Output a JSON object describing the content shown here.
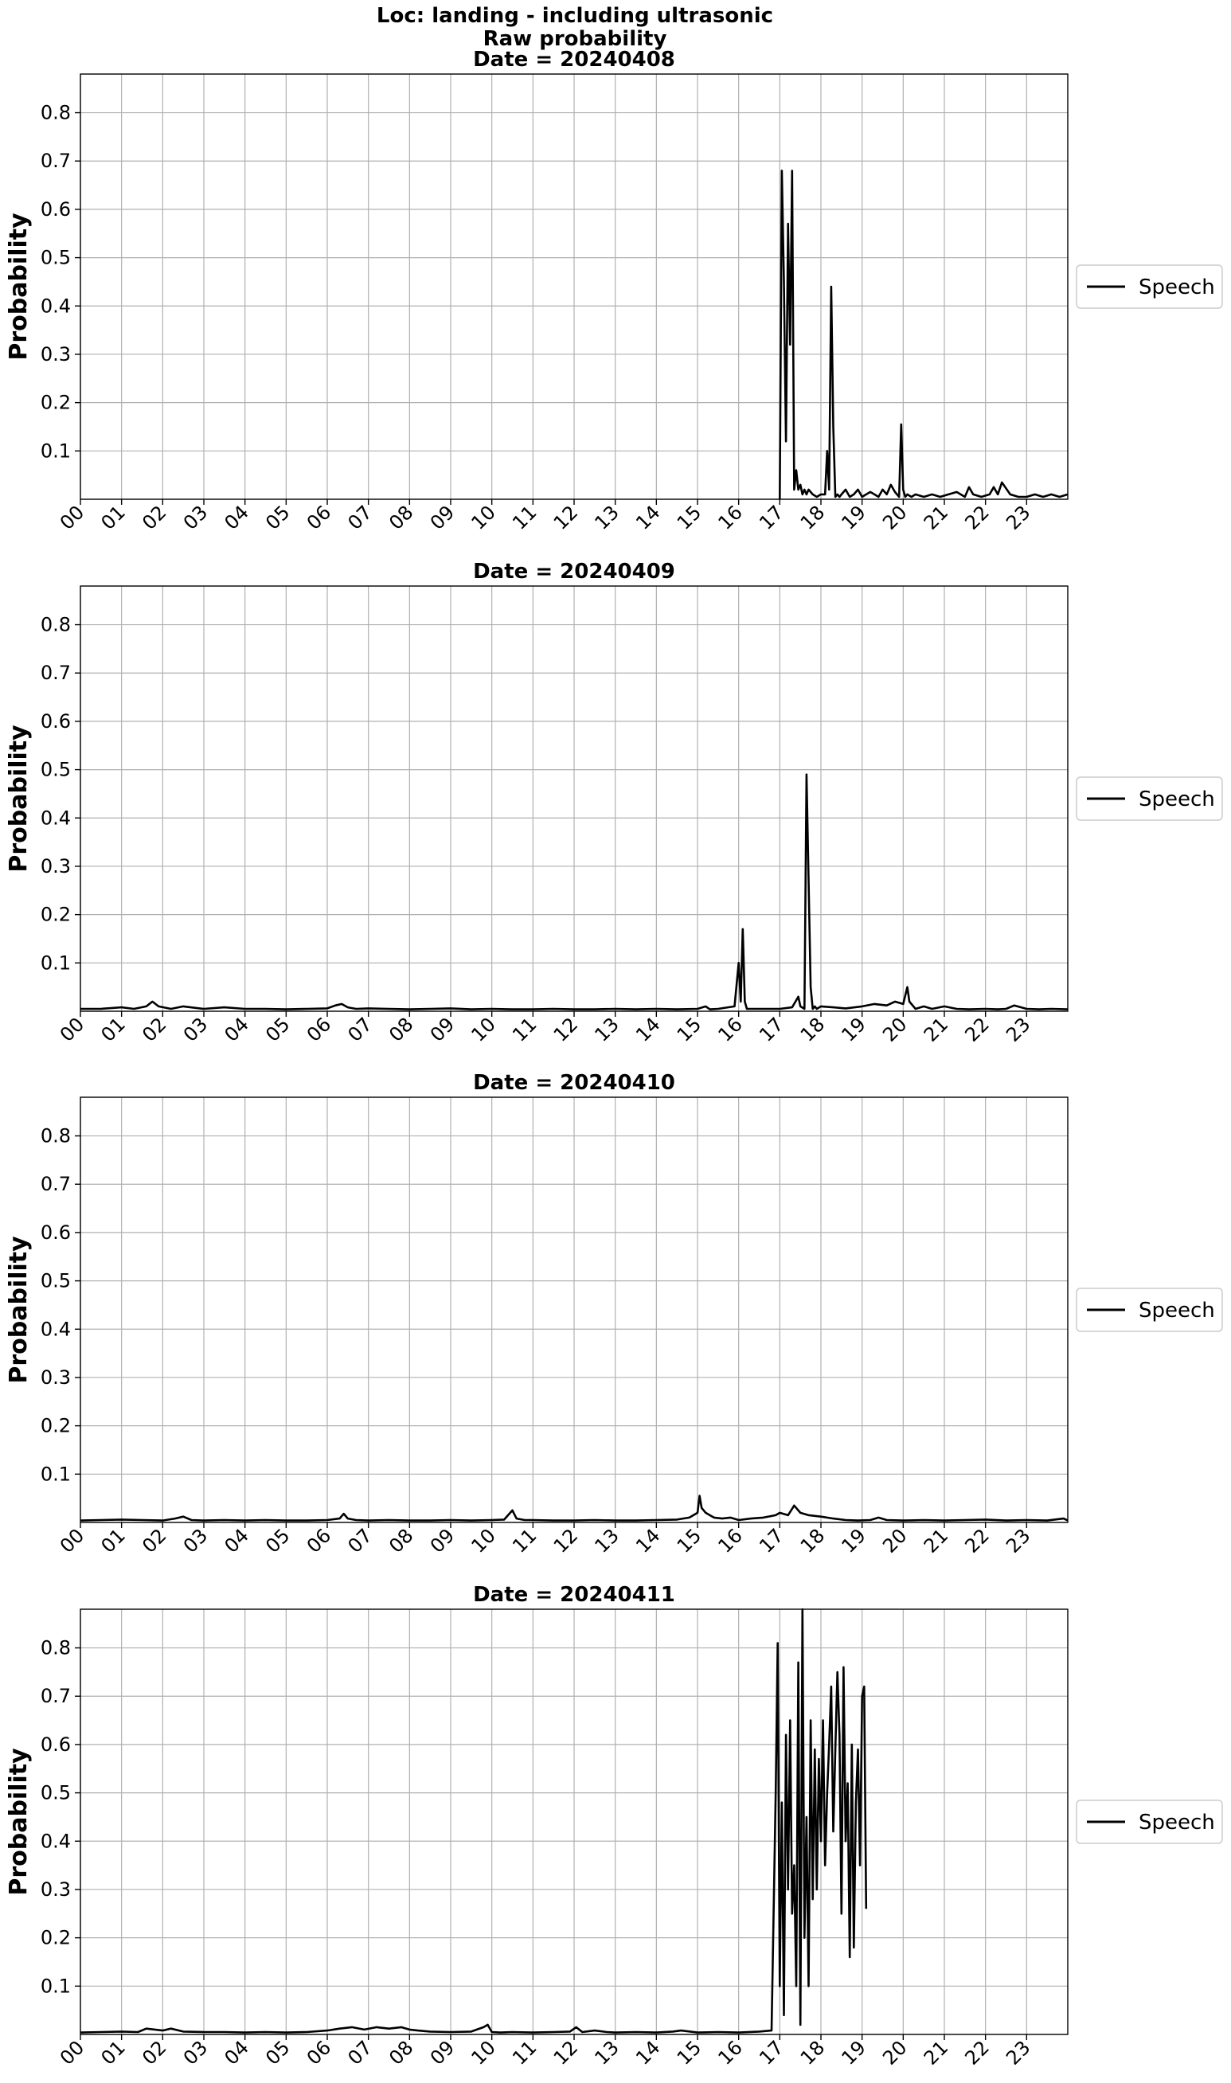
{
  "figure": {
    "title_lines": [
      "Loc: landing - including ultrasonic",
      "Raw probability"
    ]
  },
  "chart_data": [
    {
      "type": "line",
      "title": "Date = 20240408",
      "xlabel": "",
      "ylabel": "Probability",
      "xlim": [
        0,
        24
      ],
      "ylim": [
        0,
        0.88
      ],
      "x_ticks": [
        "00",
        "01",
        "02",
        "03",
        "04",
        "05",
        "06",
        "07",
        "08",
        "09",
        "10",
        "11",
        "12",
        "13",
        "14",
        "15",
        "16",
        "17",
        "18",
        "19",
        "20",
        "21",
        "22",
        "23"
      ],
      "y_ticks": [
        0.1,
        0.2,
        0.3,
        0.4,
        0.5,
        0.6,
        0.7,
        0.8
      ],
      "grid": true,
      "legend_position": "center-right",
      "series": [
        {
          "name": "Speech",
          "color": "#000000",
          "x": [
            17.0,
            17.05,
            17.1,
            17.15,
            17.2,
            17.25,
            17.3,
            17.35,
            17.4,
            17.45,
            17.5,
            17.55,
            17.6,
            17.65,
            17.7,
            17.8,
            17.9,
            18.0,
            18.1,
            18.15,
            18.2,
            18.25,
            18.3,
            18.35,
            18.4,
            18.45,
            18.5,
            18.6,
            18.7,
            18.8,
            18.9,
            19.0,
            19.1,
            19.2,
            19.3,
            19.4,
            19.5,
            19.6,
            19.7,
            19.8,
            19.9,
            19.95,
            20.0,
            20.05,
            20.1,
            20.2,
            20.3,
            20.5,
            20.7,
            20.9,
            21.1,
            21.3,
            21.5,
            21.6,
            21.7,
            21.9,
            22.1,
            22.2,
            22.3,
            22.4,
            22.6,
            22.8,
            23.0,
            23.2,
            23.4,
            23.6,
            23.8,
            24.0
          ],
          "y": [
            0.0,
            0.68,
            0.45,
            0.12,
            0.57,
            0.32,
            0.68,
            0.02,
            0.06,
            0.02,
            0.03,
            0.01,
            0.02,
            0.01,
            0.02,
            0.01,
            0.005,
            0.01,
            0.01,
            0.1,
            0.02,
            0.44,
            0.15,
            0.005,
            0.01,
            0.005,
            0.01,
            0.02,
            0.005,
            0.01,
            0.02,
            0.005,
            0.01,
            0.015,
            0.01,
            0.005,
            0.02,
            0.01,
            0.03,
            0.015,
            0.005,
            0.155,
            0.02,
            0.005,
            0.01,
            0.005,
            0.01,
            0.005,
            0.01,
            0.005,
            0.01,
            0.015,
            0.005,
            0.025,
            0.01,
            0.005,
            0.01,
            0.025,
            0.01,
            0.035,
            0.01,
            0.005,
            0.005,
            0.01,
            0.005,
            0.01,
            0.005,
            0.01
          ]
        }
      ]
    },
    {
      "type": "line",
      "title": "Date = 20240409",
      "xlabel": "",
      "ylabel": "Probability",
      "xlim": [
        0,
        24
      ],
      "ylim": [
        0,
        0.88
      ],
      "x_ticks": [
        "00",
        "01",
        "02",
        "03",
        "04",
        "05",
        "06",
        "07",
        "08",
        "09",
        "10",
        "11",
        "12",
        "13",
        "14",
        "15",
        "16",
        "17",
        "18",
        "19",
        "20",
        "21",
        "22",
        "23"
      ],
      "y_ticks": [
        0.1,
        0.2,
        0.3,
        0.4,
        0.5,
        0.6,
        0.7,
        0.8
      ],
      "grid": true,
      "legend_position": "center-right",
      "series": [
        {
          "name": "Speech",
          "color": "#000000",
          "x": [
            0,
            0.5,
            1.0,
            1.3,
            1.6,
            1.75,
            1.9,
            2.2,
            2.5,
            3.0,
            3.5,
            4.0,
            4.5,
            5.0,
            5.5,
            6.0,
            6.2,
            6.35,
            6.5,
            6.7,
            7.0,
            7.5,
            8.0,
            8.5,
            9.0,
            9.5,
            10.0,
            10.5,
            11.0,
            11.5,
            12.0,
            12.5,
            13.0,
            13.5,
            14.0,
            14.5,
            15.0,
            15.2,
            15.3,
            15.5,
            15.9,
            16.0,
            16.05,
            16.1,
            16.15,
            16.2,
            16.3,
            16.6,
            17.0,
            17.3,
            17.45,
            17.5,
            17.6,
            17.65,
            17.75,
            17.8,
            17.85,
            17.9,
            18.0,
            18.3,
            18.6,
            19.0,
            19.3,
            19.6,
            19.8,
            20.0,
            20.1,
            20.15,
            20.3,
            20.5,
            20.7,
            21.0,
            21.3,
            21.6,
            22.0,
            22.3,
            22.5,
            22.7,
            23.0,
            23.3,
            23.6,
            24.0
          ],
          "y": [
            0.005,
            0.005,
            0.008,
            0.005,
            0.01,
            0.02,
            0.01,
            0.005,
            0.01,
            0.005,
            0.008,
            0.005,
            0.005,
            0.004,
            0.005,
            0.006,
            0.012,
            0.015,
            0.008,
            0.005,
            0.006,
            0.005,
            0.004,
            0.005,
            0.006,
            0.004,
            0.005,
            0.004,
            0.004,
            0.005,
            0.004,
            0.004,
            0.005,
            0.004,
            0.005,
            0.004,
            0.005,
            0.01,
            0.004,
            0.005,
            0.01,
            0.1,
            0.02,
            0.17,
            0.02,
            0.005,
            0.005,
            0.005,
            0.005,
            0.008,
            0.03,
            0.01,
            0.005,
            0.49,
            0.05,
            0.005,
            0.01,
            0.005,
            0.01,
            0.008,
            0.006,
            0.01,
            0.015,
            0.012,
            0.02,
            0.015,
            0.05,
            0.02,
            0.005,
            0.01,
            0.005,
            0.01,
            0.005,
            0.004,
            0.005,
            0.004,
            0.005,
            0.012,
            0.005,
            0.004,
            0.005,
            0.004
          ]
        }
      ]
    },
    {
      "type": "line",
      "title": "Date = 20240410",
      "xlabel": "",
      "ylabel": "Probability",
      "xlim": [
        0,
        24
      ],
      "ylim": [
        0,
        0.88
      ],
      "x_ticks": [
        "00",
        "01",
        "02",
        "03",
        "04",
        "05",
        "06",
        "07",
        "08",
        "09",
        "10",
        "11",
        "12",
        "13",
        "14",
        "15",
        "16",
        "17",
        "18",
        "19",
        "20",
        "21",
        "22",
        "23"
      ],
      "y_ticks": [
        0.1,
        0.2,
        0.3,
        0.4,
        0.5,
        0.6,
        0.7,
        0.8
      ],
      "grid": true,
      "legend_position": "center-right",
      "series": [
        {
          "name": "Speech",
          "color": "#000000",
          "x": [
            0,
            0.5,
            1.0,
            1.5,
            2.0,
            2.3,
            2.5,
            2.7,
            3.0,
            3.5,
            4.0,
            4.5,
            5.0,
            5.5,
            6.0,
            6.3,
            6.4,
            6.5,
            6.7,
            7.0,
            7.5,
            8.0,
            8.5,
            9.0,
            9.5,
            10.0,
            10.3,
            10.5,
            10.6,
            10.8,
            11.0,
            11.5,
            12.0,
            12.5,
            13.0,
            13.5,
            14.0,
            14.5,
            14.8,
            15.0,
            15.05,
            15.1,
            15.2,
            15.4,
            15.6,
            15.8,
            16.0,
            16.3,
            16.6,
            16.9,
            17.0,
            17.2,
            17.35,
            17.5,
            17.7,
            18.0,
            18.3,
            18.6,
            18.9,
            19.2,
            19.4,
            19.6,
            20.0,
            20.5,
            21.0,
            21.5,
            22.0,
            22.5,
            23.0,
            23.5,
            23.9,
            24.0
          ],
          "y": [
            0.004,
            0.005,
            0.006,
            0.005,
            0.004,
            0.008,
            0.012,
            0.005,
            0.004,
            0.005,
            0.004,
            0.005,
            0.004,
            0.004,
            0.005,
            0.008,
            0.018,
            0.008,
            0.005,
            0.004,
            0.005,
            0.004,
            0.004,
            0.005,
            0.004,
            0.005,
            0.006,
            0.025,
            0.008,
            0.005,
            0.005,
            0.004,
            0.004,
            0.005,
            0.004,
            0.004,
            0.005,
            0.006,
            0.01,
            0.02,
            0.055,
            0.03,
            0.02,
            0.01,
            0.008,
            0.01,
            0.005,
            0.008,
            0.01,
            0.015,
            0.02,
            0.015,
            0.035,
            0.02,
            0.015,
            0.012,
            0.008,
            0.005,
            0.004,
            0.005,
            0.01,
            0.005,
            0.004,
            0.005,
            0.004,
            0.005,
            0.006,
            0.004,
            0.005,
            0.004,
            0.008,
            0.004
          ]
        }
      ]
    },
    {
      "type": "line",
      "title": "Date = 20240411",
      "xlabel": "",
      "ylabel": "Probability",
      "xlim": [
        0,
        24
      ],
      "ylim": [
        0,
        0.88
      ],
      "x_ticks": [
        "00",
        "01",
        "02",
        "03",
        "04",
        "05",
        "06",
        "07",
        "08",
        "09",
        "10",
        "11",
        "12",
        "13",
        "14",
        "15",
        "16",
        "17",
        "18",
        "19",
        "20",
        "21",
        "22",
        "23"
      ],
      "y_ticks": [
        0.1,
        0.2,
        0.3,
        0.4,
        0.5,
        0.6,
        0.7,
        0.8
      ],
      "grid": true,
      "legend_position": "center-right",
      "series": [
        {
          "name": "Speech",
          "color": "#000000",
          "x": [
            0,
            0.5,
            1.0,
            1.4,
            1.6,
            2.0,
            2.2,
            2.5,
            3.0,
            3.5,
            4.0,
            4.5,
            5.0,
            5.5,
            6.0,
            6.3,
            6.6,
            6.9,
            7.2,
            7.5,
            7.8,
            8.0,
            8.2,
            8.5,
            9.0,
            9.5,
            9.8,
            9.9,
            10.0,
            10.2,
            10.5,
            11.0,
            11.5,
            11.9,
            12.05,
            12.2,
            12.5,
            12.8,
            13.0,
            13.5,
            14.0,
            14.4,
            14.6,
            15.0,
            15.5,
            16.0,
            16.5,
            16.8,
            16.9,
            16.95,
            17.0,
            17.05,
            17.1,
            17.15,
            17.2,
            17.25,
            17.3,
            17.35,
            17.4,
            17.45,
            17.5,
            17.55,
            17.6,
            17.65,
            17.7,
            17.75,
            17.8,
            17.85,
            17.9,
            17.95,
            18.0,
            18.05,
            18.1,
            18.15,
            18.2,
            18.25,
            18.3,
            18.35,
            18.4,
            18.45,
            18.5,
            18.55,
            18.6,
            18.65,
            18.7,
            18.75,
            18.8,
            18.85,
            18.9,
            18.95,
            19.0,
            19.05,
            19.1
          ],
          "y": [
            0.004,
            0.005,
            0.006,
            0.005,
            0.012,
            0.008,
            0.012,
            0.006,
            0.005,
            0.005,
            0.004,
            0.005,
            0.004,
            0.005,
            0.008,
            0.012,
            0.015,
            0.01,
            0.015,
            0.012,
            0.015,
            0.01,
            0.008,
            0.006,
            0.005,
            0.006,
            0.015,
            0.02,
            0.005,
            0.004,
            0.005,
            0.004,
            0.005,
            0.006,
            0.015,
            0.005,
            0.008,
            0.005,
            0.004,
            0.005,
            0.004,
            0.006,
            0.008,
            0.004,
            0.005,
            0.004,
            0.006,
            0.008,
            0.5,
            0.81,
            0.1,
            0.48,
            0.04,
            0.62,
            0.3,
            0.65,
            0.25,
            0.35,
            0.1,
            0.77,
            0.02,
            0.88,
            0.2,
            0.45,
            0.1,
            0.65,
            0.28,
            0.59,
            0.3,
            0.57,
            0.4,
            0.65,
            0.35,
            0.5,
            0.6,
            0.72,
            0.42,
            0.59,
            0.75,
            0.62,
            0.25,
            0.76,
            0.4,
            0.52,
            0.16,
            0.6,
            0.18,
            0.48,
            0.59,
            0.35,
            0.7,
            0.72,
            0.26
          ]
        }
      ]
    }
  ]
}
